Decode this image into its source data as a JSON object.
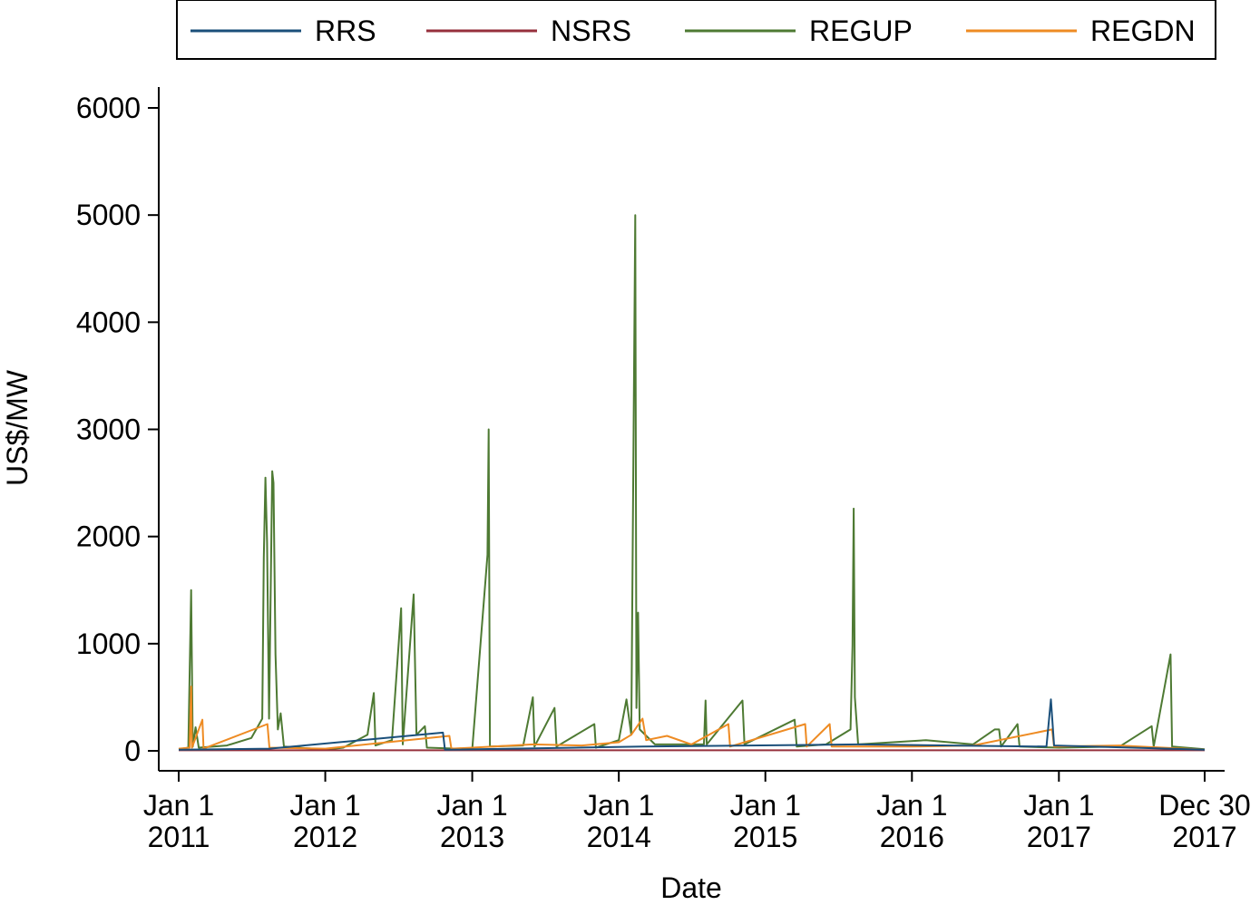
{
  "chart_data": {
    "type": "line",
    "xlabel": "Date",
    "ylabel": "US$/MW",
    "ylim": [
      0,
      6000
    ],
    "yticks": [
      0,
      1000,
      2000,
      3000,
      4000,
      5000,
      6000
    ],
    "xlim": [
      "2011-01-01",
      "2017-12-30"
    ],
    "xticks": [
      {
        "date": "2011-01-01",
        "line1": "Jan 1",
        "line2": "2011"
      },
      {
        "date": "2012-01-01",
        "line1": "Jan 1",
        "line2": "2012"
      },
      {
        "date": "2013-01-01",
        "line1": "Jan 1",
        "line2": "2013"
      },
      {
        "date": "2014-01-01",
        "line1": "Jan 1",
        "line2": "2014"
      },
      {
        "date": "2015-01-01",
        "line1": "Jan 1",
        "line2": "2015"
      },
      {
        "date": "2016-01-01",
        "line1": "Jan 1",
        "line2": "2016"
      },
      {
        "date": "2017-01-01",
        "line1": "Jan 1",
        "line2": "2017"
      },
      {
        "date": "2017-12-30",
        "line1": "Dec 30",
        "line2": "2017"
      }
    ],
    "grid": false,
    "legend_position": "top",
    "series": [
      {
        "name": "RRS",
        "color": "#1a4f7a",
        "points": [
          [
            "2011-01-01",
            10
          ],
          [
            "2011-08-15",
            20
          ],
          [
            "2012-10-20",
            170
          ],
          [
            "2012-10-25",
            10
          ],
          [
            "2014-03-01",
            40
          ],
          [
            "2015-08-20",
            60
          ],
          [
            "2016-12-01",
            40
          ],
          [
            "2016-12-12",
            480
          ],
          [
            "2016-12-20",
            50
          ],
          [
            "2017-12-30",
            10
          ]
        ]
      },
      {
        "name": "NSRS",
        "color": "#96303c",
        "points": [
          [
            "2011-01-01",
            5
          ],
          [
            "2012-01-01",
            5
          ],
          [
            "2013-01-01",
            5
          ],
          [
            "2014-01-01",
            5
          ],
          [
            "2015-01-01",
            5
          ],
          [
            "2016-01-01",
            5
          ],
          [
            "2017-01-01",
            5
          ],
          [
            "2017-12-30",
            5
          ]
        ]
      },
      {
        "name": "REGUP",
        "color": "#4e7a33",
        "points": [
          [
            "2011-01-01",
            15
          ],
          [
            "2011-01-25",
            30
          ],
          [
            "2011-02-01",
            1500
          ],
          [
            "2011-02-05",
            40
          ],
          [
            "2011-02-12",
            220
          ],
          [
            "2011-02-20",
            30
          ],
          [
            "2011-05-01",
            50
          ],
          [
            "2011-07-01",
            120
          ],
          [
            "2011-07-28",
            300
          ],
          [
            "2011-08-01",
            1800
          ],
          [
            "2011-08-05",
            2550
          ],
          [
            "2011-08-09",
            1950
          ],
          [
            "2011-08-14",
            300
          ],
          [
            "2011-08-22",
            2610
          ],
          [
            "2011-08-25",
            2500
          ],
          [
            "2011-08-30",
            900
          ],
          [
            "2011-09-05",
            200
          ],
          [
            "2011-09-12",
            350
          ],
          [
            "2011-09-20",
            40
          ],
          [
            "2011-12-01",
            20
          ],
          [
            "2012-01-01",
            10
          ],
          [
            "2012-02-15",
            30
          ],
          [
            "2012-04-15",
            150
          ],
          [
            "2012-05-01",
            540
          ],
          [
            "2012-05-05",
            50
          ],
          [
            "2012-06-15",
            100
          ],
          [
            "2012-07-08",
            1330
          ],
          [
            "2012-07-12",
            60
          ],
          [
            "2012-08-08",
            1460
          ],
          [
            "2012-08-15",
            150
          ],
          [
            "2012-09-05",
            230
          ],
          [
            "2012-09-10",
            30
          ],
          [
            "2013-01-01",
            15
          ],
          [
            "2013-02-08",
            1830
          ],
          [
            "2013-02-11",
            3000
          ],
          [
            "2013-02-14",
            40
          ],
          [
            "2013-05-08",
            50
          ],
          [
            "2013-06-01",
            500
          ],
          [
            "2013-06-05",
            40
          ],
          [
            "2013-07-25",
            400
          ],
          [
            "2013-07-30",
            40
          ],
          [
            "2013-11-01",
            250
          ],
          [
            "2013-11-05",
            30
          ],
          [
            "2014-01-01",
            100
          ],
          [
            "2014-01-20",
            480
          ],
          [
            "2014-02-01",
            150
          ],
          [
            "2014-02-11",
            5000
          ],
          [
            "2014-02-14",
            400
          ],
          [
            "2014-02-18",
            1290
          ],
          [
            "2014-02-22",
            200
          ],
          [
            "2014-04-01",
            60
          ],
          [
            "2014-08-01",
            60
          ],
          [
            "2014-08-05",
            470
          ],
          [
            "2014-08-08",
            60
          ],
          [
            "2014-11-05",
            470
          ],
          [
            "2014-11-10",
            60
          ],
          [
            "2015-03-15",
            290
          ],
          [
            "2015-03-20",
            40
          ],
          [
            "2015-06-01",
            60
          ],
          [
            "2015-08-01",
            200
          ],
          [
            "2015-08-06",
            980
          ],
          [
            "2015-08-09",
            2260
          ],
          [
            "2015-08-12",
            500
          ],
          [
            "2015-08-20",
            60
          ],
          [
            "2015-11-15",
            80
          ],
          [
            "2016-02-05",
            100
          ],
          [
            "2016-06-01",
            60
          ],
          [
            "2016-07-25",
            200
          ],
          [
            "2016-08-05",
            200
          ],
          [
            "2016-08-10",
            40
          ],
          [
            "2016-09-20",
            250
          ],
          [
            "2016-09-25",
            40
          ],
          [
            "2017-01-01",
            30
          ],
          [
            "2017-06-01",
            40
          ],
          [
            "2017-08-20",
            230
          ],
          [
            "2017-08-25",
            40
          ],
          [
            "2017-10-06",
            900
          ],
          [
            "2017-10-10",
            40
          ],
          [
            "2017-12-30",
            15
          ]
        ]
      },
      {
        "name": "REGDN",
        "color": "#ee8b23",
        "points": [
          [
            "2011-01-01",
            20
          ],
          [
            "2011-01-28",
            30
          ],
          [
            "2011-02-01",
            600
          ],
          [
            "2011-02-03",
            30
          ],
          [
            "2011-03-01",
            290
          ],
          [
            "2011-03-04",
            20
          ],
          [
            "2011-08-10",
            250
          ],
          [
            "2011-08-15",
            30
          ],
          [
            "2012-01-01",
            20
          ],
          [
            "2012-11-05",
            140
          ],
          [
            "2012-11-10",
            20
          ],
          [
            "2013-01-01",
            30
          ],
          [
            "2013-06-01",
            60
          ],
          [
            "2013-10-01",
            50
          ],
          [
            "2014-01-01",
            80
          ],
          [
            "2014-02-01",
            150
          ],
          [
            "2014-03-01",
            300
          ],
          [
            "2014-03-10",
            100
          ],
          [
            "2014-05-01",
            140
          ],
          [
            "2014-07-01",
            60
          ],
          [
            "2014-10-01",
            250
          ],
          [
            "2014-10-05",
            40
          ],
          [
            "2015-04-10",
            250
          ],
          [
            "2015-04-14",
            40
          ],
          [
            "2015-06-10",
            250
          ],
          [
            "2015-06-15",
            40
          ],
          [
            "2016-01-01",
            40
          ],
          [
            "2016-06-01",
            50
          ],
          [
            "2016-12-15",
            200
          ],
          [
            "2016-12-20",
            40
          ],
          [
            "2017-06-01",
            50
          ],
          [
            "2017-12-30",
            10
          ]
        ]
      }
    ]
  }
}
